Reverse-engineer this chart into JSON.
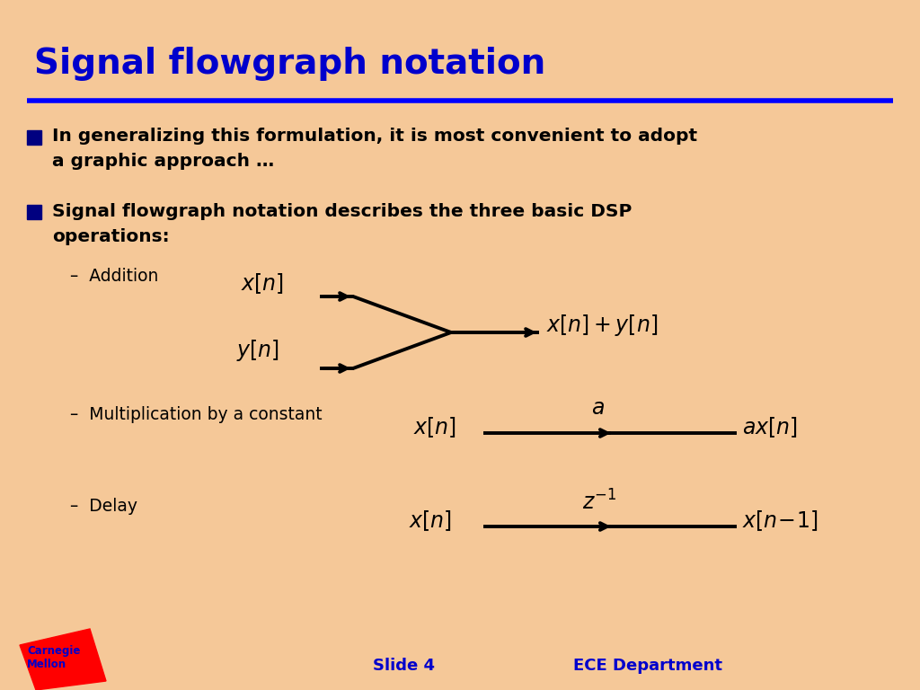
{
  "title": "Signal flowgraph notation",
  "bg_color": "#F5C898",
  "title_color": "#0000CC",
  "title_fontsize": 28,
  "blue_line_color": "#0000FF",
  "bullet_color": "#000080",
  "bullet_text_color": "#000000",
  "footer_color": "#0000CC",
  "bullet1": "In generalizing this formulation, it is most convenient to adopt\na graphic approach …",
  "bullet2": "Signal flowgraph notation describes the three basic DSP\noperations:",
  "sub1_label": "–  Addition",
  "sub2_label": "–  Multiplication by a constant",
  "sub3_label": "–  Delay",
  "slide_label": "Slide 4",
  "dept_label": "ECE Department"
}
